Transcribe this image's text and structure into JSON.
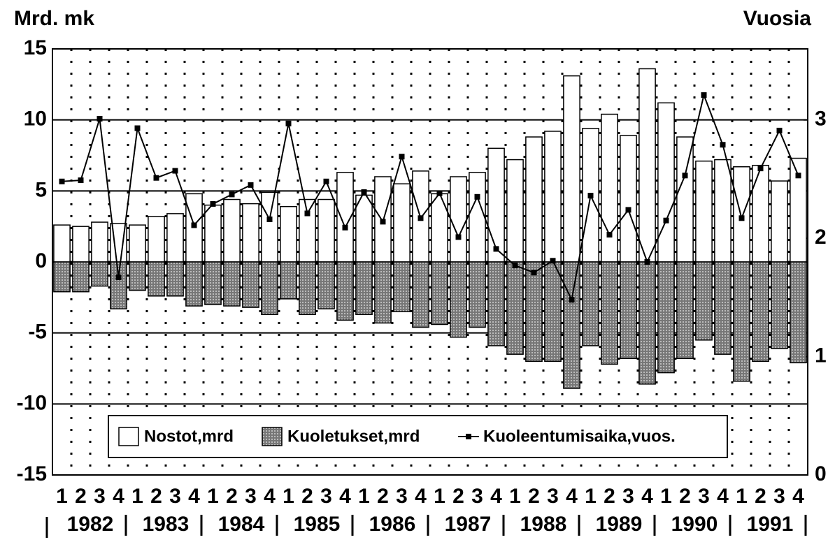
{
  "chart_data": {
    "type": "bar",
    "y_label": "Mrd. mk",
    "y2_label": "Vuosia",
    "categories": [
      "1",
      "2",
      "3",
      "4",
      "1",
      "2",
      "3",
      "4",
      "1",
      "2",
      "3",
      "4",
      "1",
      "2",
      "3",
      "4",
      "1",
      "2",
      "3",
      "4",
      "1",
      "2",
      "3",
      "4",
      "1",
      "2",
      "3",
      "4",
      "1",
      "2",
      "3",
      "4",
      "1",
      "2",
      "3",
      "4",
      "1",
      "2",
      "3",
      "4"
    ],
    "years": [
      "1982",
      "1983",
      "1984",
      "1985",
      "1986",
      "1987",
      "1988",
      "1989",
      "1990",
      "1991"
    ],
    "series": [
      {
        "name": "Nostot,mrd",
        "color": "#ffffff",
        "type": "bar",
        "values": [
          2.6,
          2.5,
          2.8,
          2.7,
          2.6,
          3.2,
          3.4,
          4.8,
          4.0,
          4.4,
          4.1,
          4.9,
          3.9,
          4.4,
          4.4,
          6.3,
          4.7,
          6.0,
          5.5,
          6.4,
          4.8,
          6.0,
          6.3,
          8.0,
          7.2,
          8.8,
          9.2,
          13.1,
          9.4,
          10.4,
          8.9,
          13.6,
          11.2,
          8.8,
          7.1,
          7.2,
          6.7,
          6.8,
          5.7,
          7.3
        ]
      },
      {
        "name": "Kuoletukset,mrd",
        "color": "#8a8a8a",
        "type": "bar",
        "values": [
          -2.1,
          -2.1,
          -1.7,
          -3.3,
          -2.0,
          -2.4,
          -2.4,
          -3.1,
          -3.0,
          -3.1,
          -3.2,
          -3.7,
          -2.6,
          -3.7,
          -3.3,
          -4.1,
          -3.7,
          -4.3,
          -3.5,
          -4.6,
          -4.4,
          -5.3,
          -4.6,
          -5.9,
          -6.5,
          -7.0,
          -7.0,
          -8.9,
          -5.9,
          -7.2,
          -6.8,
          -8.6,
          -7.8,
          -6.8,
          -5.5,
          -6.5,
          -8.4,
          -7.0,
          -6.1,
          -7.1
        ]
      },
      {
        "name": "Kuoleentumisaika,vuos.",
        "color": "#000000",
        "type": "line",
        "axis": "y2",
        "values": [
          2.48,
          2.49,
          3.01,
          1.67,
          2.93,
          2.51,
          2.57,
          2.11,
          2.29,
          2.37,
          2.45,
          2.16,
          2.97,
          2.21,
          2.48,
          2.09,
          2.39,
          2.14,
          2.69,
          2.17,
          2.38,
          2.01,
          2.35,
          1.91,
          1.77,
          1.71,
          1.81,
          1.48,
          2.36,
          2.03,
          2.24,
          1.8,
          2.15,
          2.53,
          3.21,
          2.79,
          2.17,
          2.59,
          2.91,
          2.53
        ]
      }
    ],
    "ylim": [
      -15,
      15
    ],
    "yticks": [
      -15,
      -10,
      -5,
      0,
      5,
      10,
      15
    ],
    "y2lim": [
      0,
      3.6
    ],
    "y2ticks": [
      0,
      1,
      2,
      3
    ],
    "grid": true,
    "legend": "bottom"
  }
}
